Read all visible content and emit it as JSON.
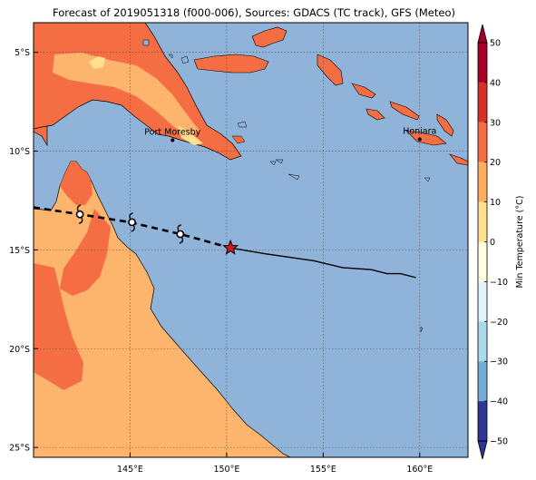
{
  "title": "Forecast of 2019051318 (f000-006), Sources: GDACS (TC track), GFS (Meteo)",
  "map": {
    "lon_range": [
      140.0,
      162.5
    ],
    "lat_range": [
      -25.5,
      -3.5
    ],
    "lon_ticks": [
      {
        "value": 145,
        "label": "145°E"
      },
      {
        "value": 150,
        "label": "150°E"
      },
      {
        "value": 155,
        "label": "155°E"
      },
      {
        "value": 160,
        "label": "160°E"
      }
    ],
    "lat_ticks": [
      {
        "value": -5,
        "label": "5°S"
      },
      {
        "value": -10,
        "label": "10°S"
      },
      {
        "value": -15,
        "label": "15°S"
      },
      {
        "value": -20,
        "label": "20°S"
      },
      {
        "value": -25,
        "label": "25°S"
      }
    ],
    "grid": true,
    "colors": {
      "ocean": "#8fb3d9",
      "land_cold": "#fdb56d",
      "land_warm": "#f46d43",
      "land_cool": "#fee090",
      "land_cooler": "#ffffbf"
    },
    "places": [
      {
        "name": "Port Moresby",
        "lon": 147.2,
        "lat": -9.45
      },
      {
        "name": "Honiara",
        "lon": 160.0,
        "lat": -9.4
      }
    ],
    "current_position": {
      "lon": 150.2,
      "lat": -14.9,
      "icon": "red-star-icon"
    },
    "forecast_track": [
      {
        "lon": 140.0,
        "lat": -12.85
      },
      {
        "lon": 142.4,
        "lat": -13.2
      },
      {
        "lon": 145.0,
        "lat": -13.6
      },
      {
        "lon": 147.6,
        "lat": -14.2
      },
      {
        "lon": 150.2,
        "lat": -14.9
      }
    ],
    "forecast_markers": [
      {
        "lon": 142.4,
        "lat": -13.2,
        "icon": "cyclone-symbol-icon"
      },
      {
        "lon": 145.1,
        "lat": -13.6,
        "icon": "cyclone-symbol-icon"
      },
      {
        "lon": 147.6,
        "lat": -14.2,
        "icon": "cyclone-symbol-icon"
      }
    ],
    "past_track": [
      {
        "lon": 150.2,
        "lat": -14.9
      },
      {
        "lon": 152.0,
        "lat": -15.2
      },
      {
        "lon": 154.5,
        "lat": -15.55
      },
      {
        "lon": 156.0,
        "lat": -15.9
      },
      {
        "lon": 157.5,
        "lat": -16.0
      },
      {
        "lon": 158.3,
        "lat": -16.2
      },
      {
        "lon": 159.0,
        "lat": -16.2
      },
      {
        "lon": 159.8,
        "lat": -16.4
      }
    ]
  },
  "colorbar": {
    "label": "Min Temperature (°C)",
    "min": -50,
    "max": 50,
    "ticks": [
      "50",
      "40",
      "30",
      "20",
      "10",
      "0",
      "−10",
      "−20",
      "−30",
      "−40",
      "−50"
    ],
    "bands": [
      {
        "from": 40,
        "to": 50,
        "color": "#a50026"
      },
      {
        "from": 30,
        "to": 40,
        "color": "#d73027"
      },
      {
        "from": 20,
        "to": 30,
        "color": "#f46d43"
      },
      {
        "from": 10,
        "to": 20,
        "color": "#fdae61"
      },
      {
        "from": 0,
        "to": 10,
        "color": "#fee090"
      },
      {
        "from": -10,
        "to": 0,
        "color": "#ffffdf"
      },
      {
        "from": -20,
        "to": -10,
        "color": "#e0f3f8"
      },
      {
        "from": -30,
        "to": -20,
        "color": "#abd9e9"
      },
      {
        "from": -40,
        "to": -30,
        "color": "#74add1"
      },
      {
        "from": -50,
        "to": -40,
        "color": "#313695"
      }
    ]
  }
}
